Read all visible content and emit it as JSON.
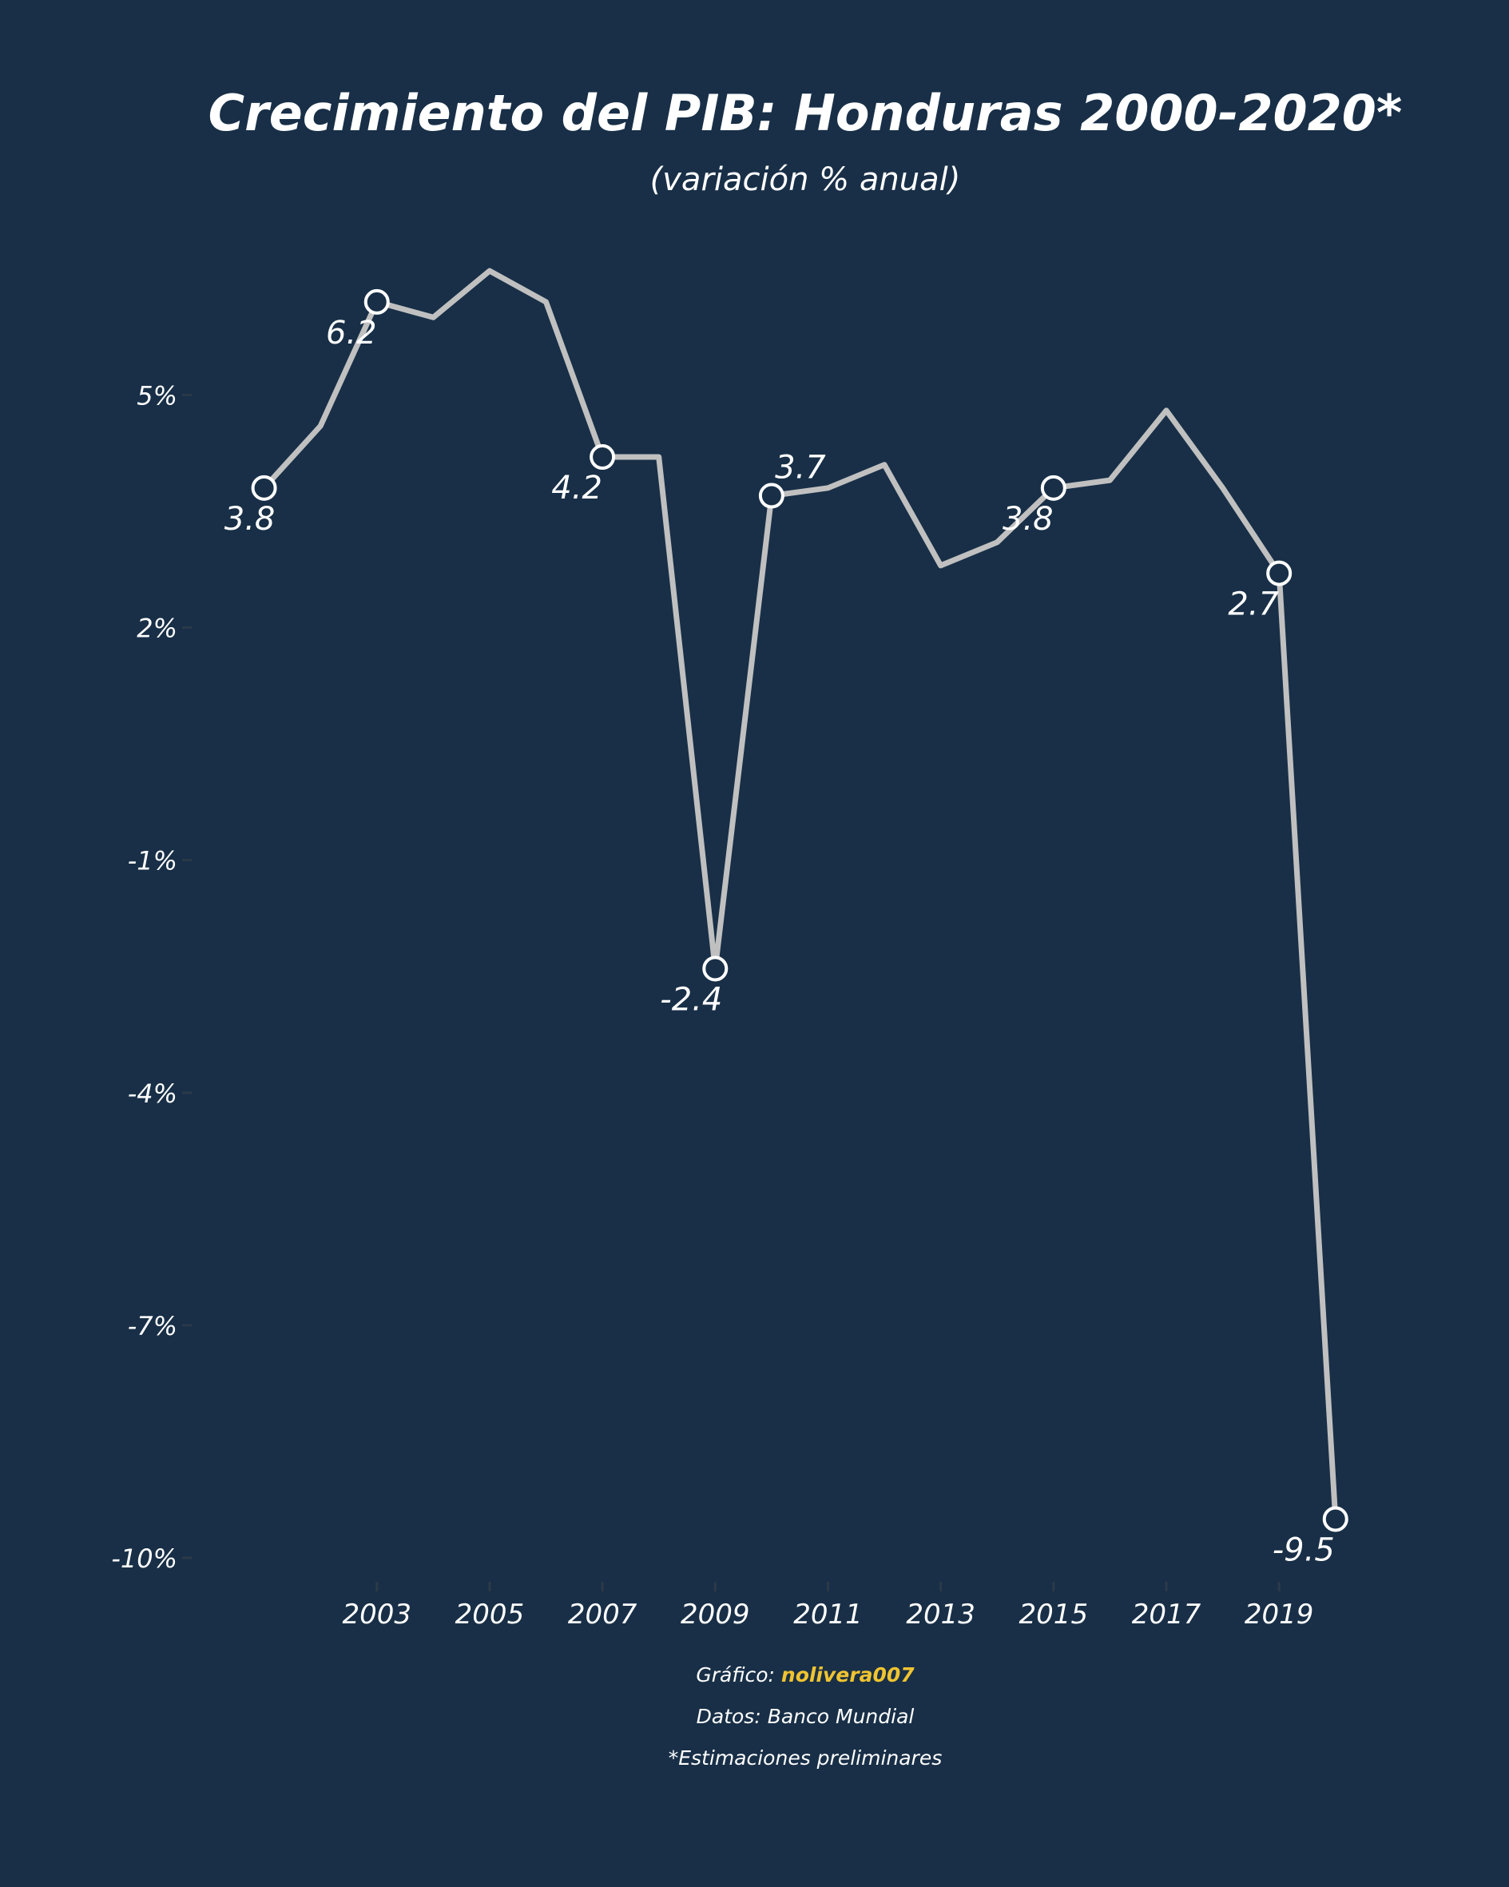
{
  "chart_data": {
    "type": "line",
    "title": "Crecimiento del PIB: Honduras 2000-2020*",
    "subtitle": "(variación % anual)",
    "xlabel": "",
    "ylabel": "",
    "x": [
      2001,
      2002,
      2003,
      2004,
      2005,
      2006,
      2007,
      2008,
      2009,
      2010,
      2011,
      2012,
      2013,
      2014,
      2015,
      2016,
      2017,
      2018,
      2019,
      2020
    ],
    "series": [
      {
        "values": [
          3.8,
          4.6,
          6.2,
          6.0,
          6.6,
          6.2,
          4.2,
          4.2,
          -2.4,
          3.7,
          3.8,
          4.1,
          2.8,
          3.1,
          3.8,
          3.9,
          4.8,
          3.8,
          2.7,
          -9.5
        ]
      }
    ],
    "labeled_points": [
      {
        "x": 2001,
        "y": 3.8,
        "label": "3.8"
      },
      {
        "x": 2003,
        "y": 6.2,
        "label": "6.2"
      },
      {
        "x": 2007,
        "y": 4.2,
        "label": "4.2"
      },
      {
        "x": 2009,
        "y": -2.4,
        "label": "-2.4"
      },
      {
        "x": 2010,
        "y": 3.7,
        "label": "3.7"
      },
      {
        "x": 2015,
        "y": 3.8,
        "label": "3.8"
      },
      {
        "x": 2019,
        "y": 2.7,
        "label": "2.7"
      },
      {
        "x": 2020,
        "y": -9.5,
        "label": "-9.5"
      }
    ],
    "x_ticks": [
      2003,
      2005,
      2007,
      2009,
      2011,
      2013,
      2015,
      2017,
      2019
    ],
    "x_tick_labels": [
      "2003",
      "2005",
      "2007",
      "2009",
      "2011",
      "2013",
      "2015",
      "2017",
      "2019"
    ],
    "y_ticks": [
      5,
      2,
      -1,
      -4,
      -7,
      -10
    ],
    "y_tick_labels": [
      "5%",
      "2%",
      "-1%",
      "-4%",
      "-7%",
      "-10%"
    ],
    "xlim": [
      2000,
      2020.4
    ],
    "ylim": [
      -10,
      6.9
    ],
    "grid": false,
    "legend": "none",
    "colors": {
      "background": "#182f47",
      "line": "#c0c0c0",
      "marker_fill": "#182f47",
      "marker_stroke": "#ffffff",
      "text": "#ffffff",
      "author": "#f0c330"
    }
  },
  "caption": {
    "grafico_prefix": "Gráfico: ",
    "author": "nolivera007",
    "datos": "Datos: Banco Mundial",
    "nota": "*Estimaciones preliminares"
  }
}
